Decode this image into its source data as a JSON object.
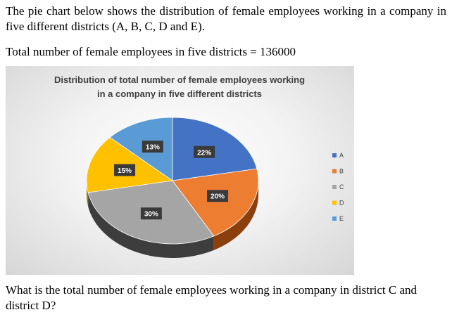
{
  "intro_text": "The pie chart below shows the distribution of female employees working in a company in five different districts (A, B, C, D and E).",
  "total_text": "Total number of female employees in five districts = 136000",
  "question_text": "What is the total number of female employees working in a company in district C and district D?",
  "chart_data": {
    "type": "pie",
    "title_lines": [
      "Distribution of total number of female employees working",
      "in a company in five different districts"
    ],
    "categories": [
      "A",
      "B",
      "C",
      "D",
      "E"
    ],
    "values": [
      22,
      20,
      30,
      15,
      13
    ],
    "labels": [
      "22%",
      "20%",
      "30%",
      "15%",
      "13%"
    ],
    "colors": [
      "#4472c4",
      "#ed7d31",
      "#a5a5a5",
      "#ffc000",
      "#5b9bd5"
    ],
    "side_colors": [
      "#2c4f8e",
      "#8a3f0c",
      "#3d3d3d",
      "#a07800",
      "#34679a"
    ],
    "style": "3d",
    "legend_position": "right"
  }
}
